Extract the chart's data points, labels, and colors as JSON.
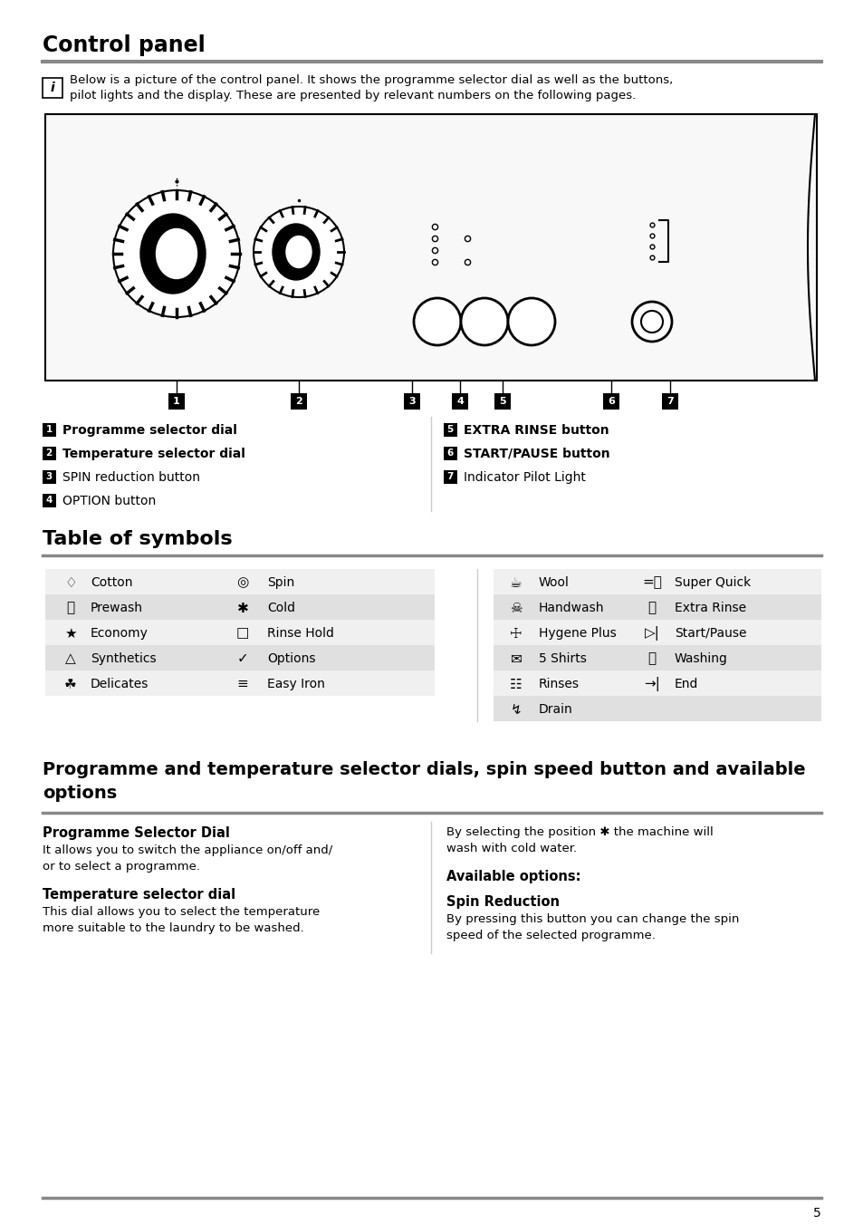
{
  "title": "Control panel",
  "section2_title": "Table of symbols",
  "section3_line1": "Programme and temperature selector dials, spin speed button and available",
  "section3_line2": "options",
  "bg_color": "#ffffff",
  "info_text_line1": "Below is a picture of the control panel. It shows the programme selector dial as well as the buttons,",
  "info_text_line2": "pilot lights and the display. These are presented by relevant numbers on the following pages.",
  "labels_left": [
    [
      "1",
      "Programme selector dial",
      true
    ],
    [
      "2",
      "Temperature selector dial",
      true
    ],
    [
      "3",
      "SPIN reduction button",
      false
    ],
    [
      "4",
      "OPTION button",
      false
    ]
  ],
  "labels_right": [
    [
      "5",
      "EXTRA RINSE button",
      true
    ],
    [
      "6",
      "START/PAUSE button",
      true
    ],
    [
      "7",
      "Indicator Pilot Light",
      false
    ]
  ],
  "sym_left": [
    [
      "♢",
      "Cotton",
      "◎",
      "Spin"
    ],
    [
      "⎍",
      "Prewash",
      "✱",
      "Cold"
    ],
    [
      "★",
      "Economy",
      "□",
      "Rinse Hold"
    ],
    [
      "△",
      "Synthetics",
      "✓",
      "Options"
    ],
    [
      "☘",
      "Delicates",
      "≡",
      "Easy Iron"
    ]
  ],
  "sym_right": [
    [
      "☕",
      "Wool",
      "=⌚",
      "Super Quick"
    ],
    [
      "☠",
      "Handwash",
      "⌖",
      "Extra Rinse"
    ],
    [
      "☩",
      "Hygene Plus",
      "▷|",
      "Start/Pause"
    ],
    [
      "✉",
      "5 Shirts",
      "⎍",
      "Washing"
    ],
    [
      "☷",
      "Rinses",
      "→|",
      "End"
    ],
    [
      "↯",
      "Drain",
      "",
      ""
    ]
  ],
  "prog_dial_title": "Programme Selector Dial",
  "prog_dial_body": [
    "It allows you to switch the appliance on/off and/",
    "or to select a programme."
  ],
  "temp_dial_title": "Temperature selector dial",
  "temp_dial_body": [
    "This dial allows you to select the temperature",
    "more suitable to the laundry to be washed."
  ],
  "right_body1": "By selecting the position ✱ the machine will",
  "right_body2": "wash with cold water.",
  "available_options": "Available options:",
  "spin_reduction": "Spin Reduction",
  "spin_red_body1": "By pressing this button you can change the spin",
  "spin_red_body2": "speed of the selected programme.",
  "page_number": "5",
  "line_color": "#aaaaaa",
  "row_colors": [
    "#f0f0f0",
    "#e0e0e0"
  ]
}
